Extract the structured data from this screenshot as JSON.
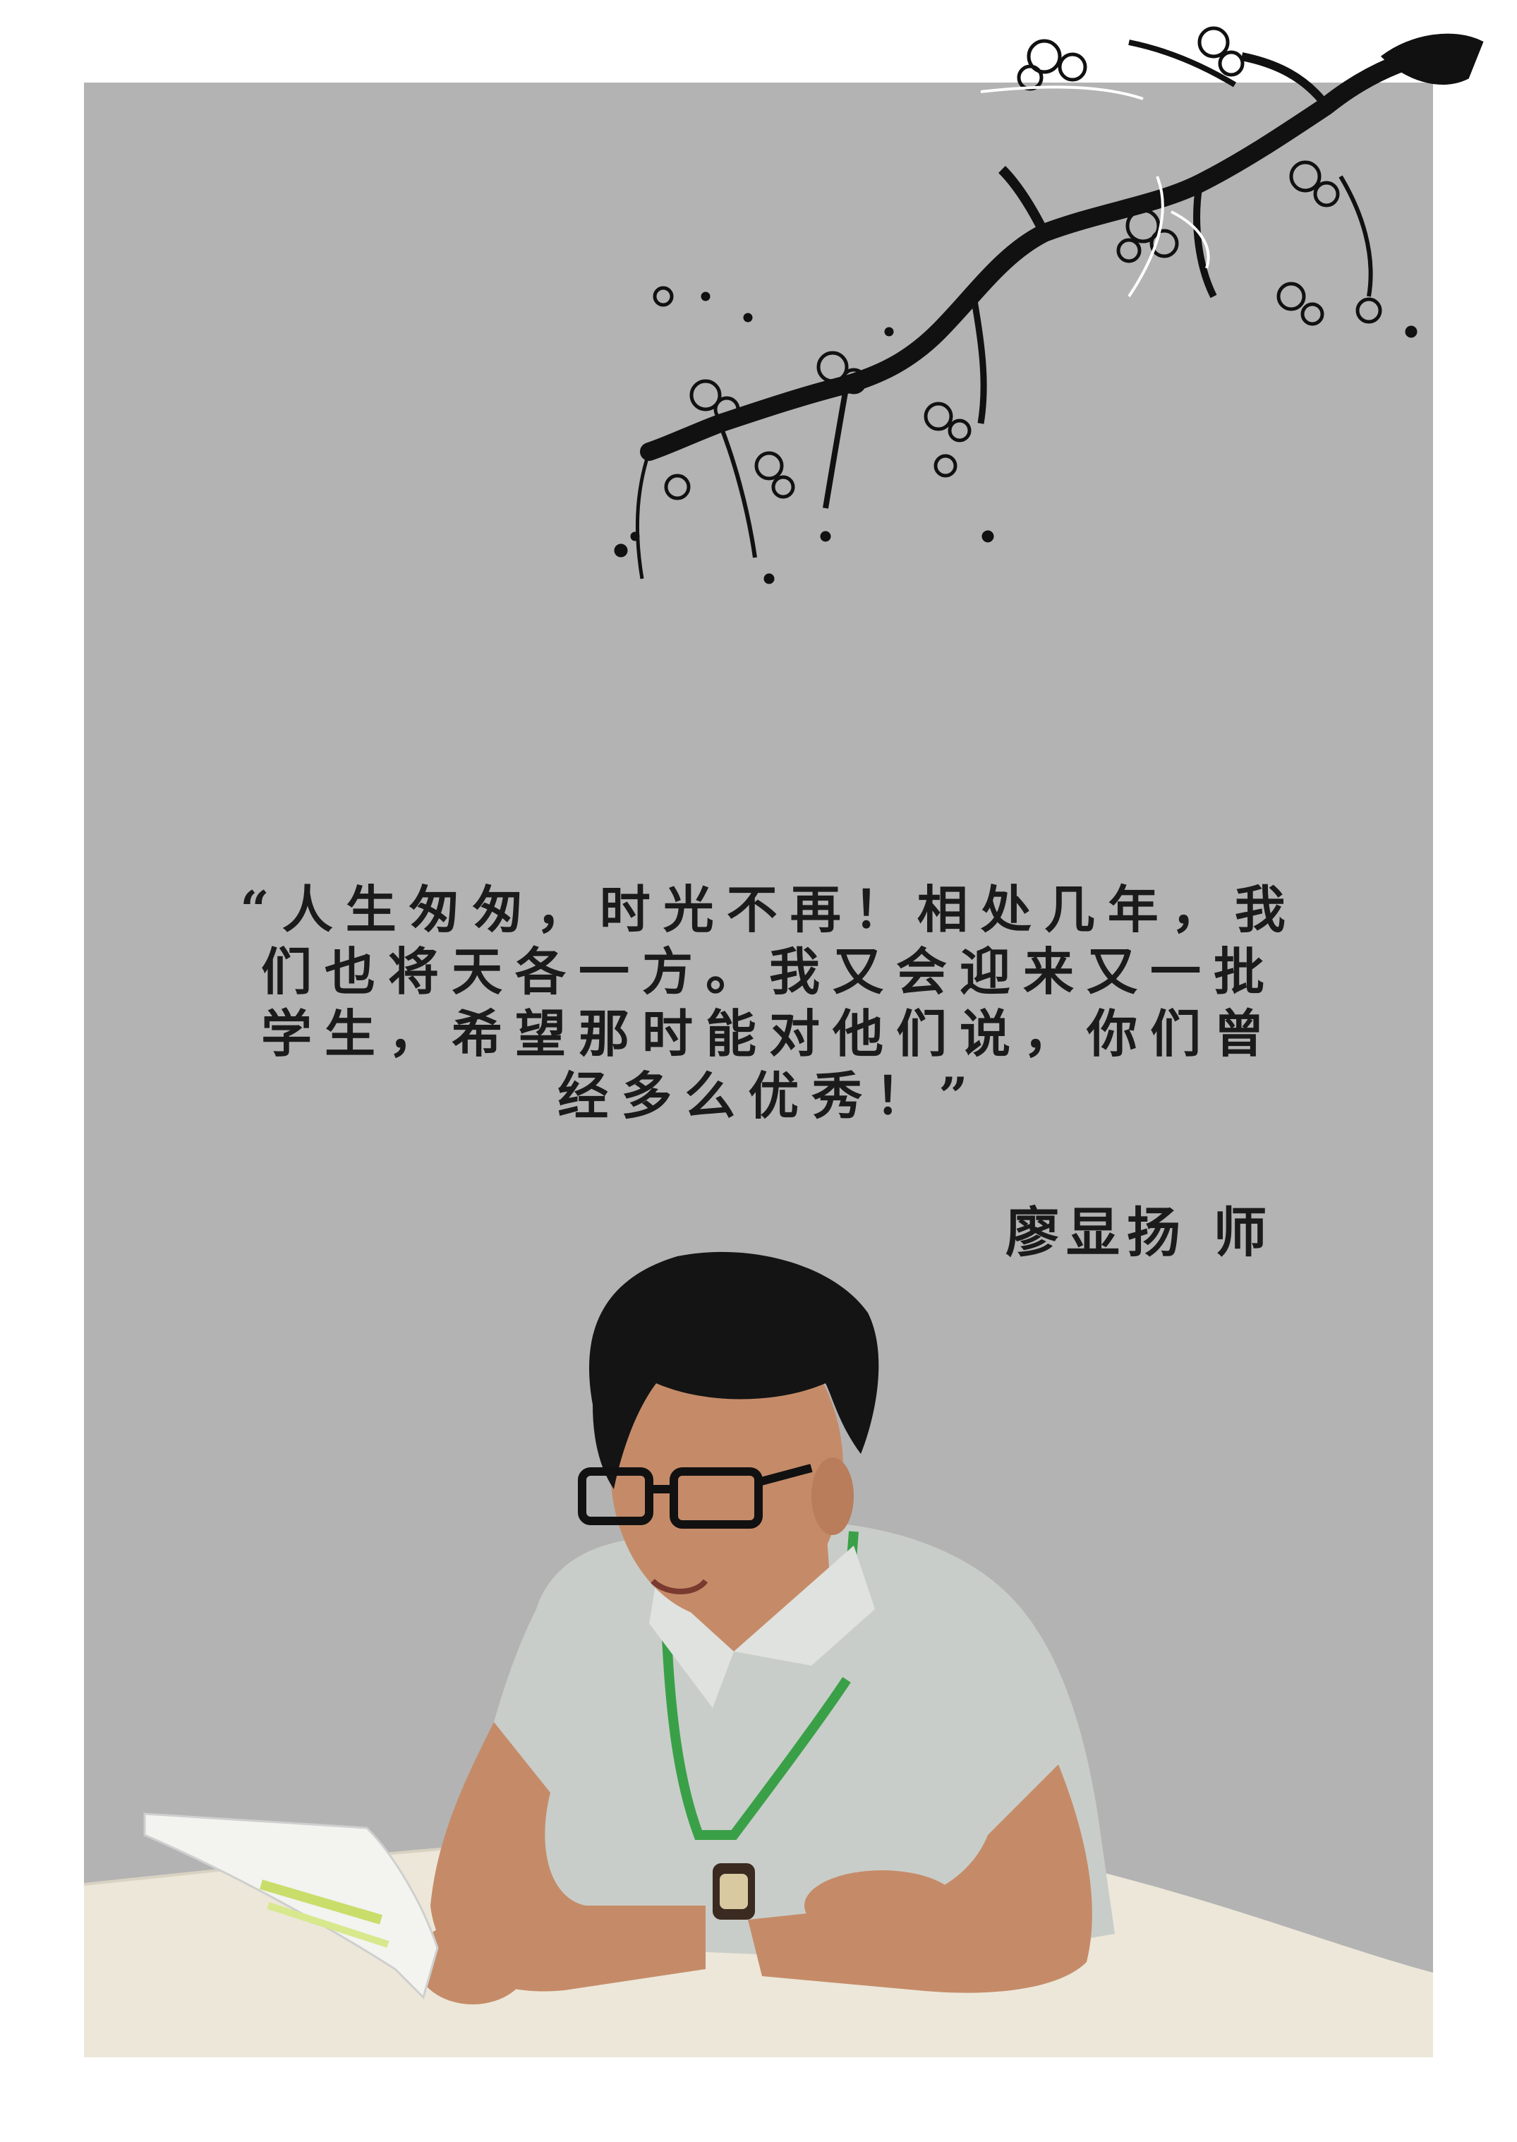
{
  "quote": {
    "lines": [
      "“人生匆匆，时光不再！相处几年，我",
      "们也将天各一方。我又会迎来又一批",
      "学生，希望那时能对他们说，你们曾",
      "经多么优秀！”"
    ]
  },
  "author": "廖显扬 师",
  "colors": {
    "page_background": "#ffffff",
    "panel_background": "#b3b3b3",
    "ink": "#1b1b1b",
    "lanyard": "#3aa048",
    "shirt": "#c9cdc9",
    "table": "#ece7d9"
  }
}
